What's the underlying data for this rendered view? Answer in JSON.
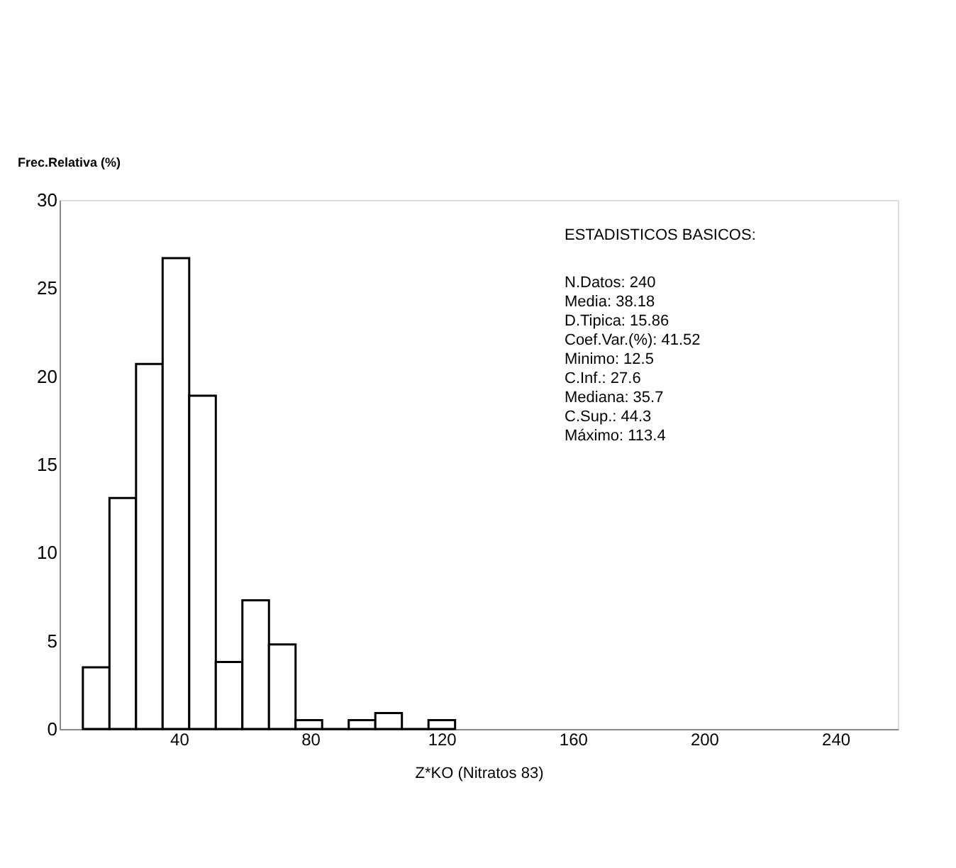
{
  "chart_data": {
    "type": "histogram",
    "xlabel": "Z*KO (Nitratos 83)",
    "ylabel": "Frec.Relativa (%)",
    "bins": [
      10.7,
      18.8,
      26.9,
      35.0,
      43.1,
      51.2,
      59.3,
      67.4,
      75.5,
      83.6,
      91.7,
      99.8,
      107.9,
      116.0,
      124.1
    ],
    "values": [
      3.5,
      13.1,
      20.7,
      26.7,
      18.9,
      3.8,
      7.3,
      4.8,
      0.5,
      0,
      0.5,
      0.9,
      0,
      0.5
    ],
    "xlim": [
      3.6,
      259
    ],
    "xticks": [
      40,
      80,
      120,
      160,
      200,
      240
    ],
    "ylim": [
      0,
      30
    ],
    "yticks": [
      0,
      5,
      10,
      15,
      20,
      25,
      30
    ],
    "grid": false,
    "annotations": [
      "ESTADISTICOS BASICOS:",
      "N.Datos: 240",
      "Media: 38.18",
      "D.Tipica: 15.86",
      "Coef.Var.(%): 41.52",
      "Minimo: 12.5",
      "C.Inf.: 27.6",
      "Mediana: 35.7",
      "C.Sup.: 44.3",
      "Máximo: 113.4"
    ]
  }
}
